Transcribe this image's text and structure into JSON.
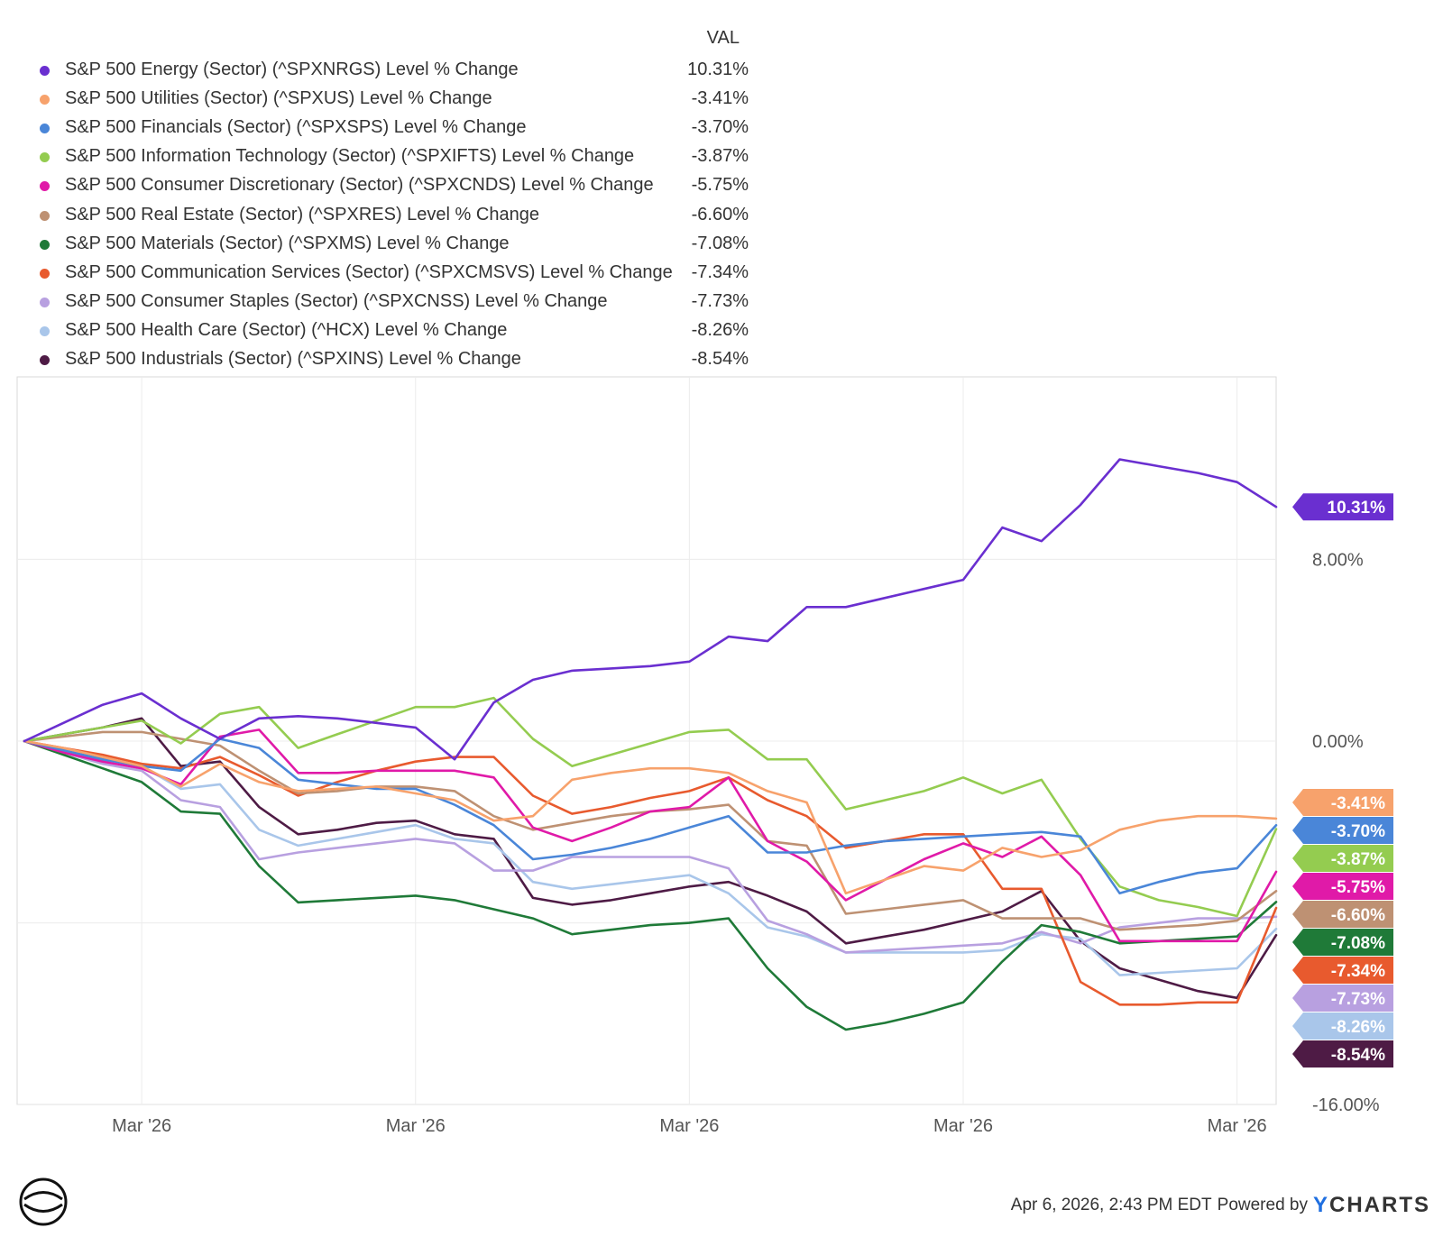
{
  "legend": {
    "value_header": "VAL"
  },
  "chart_data": {
    "type": "line",
    "title": "",
    "xlabel": "",
    "ylabel": "",
    "ylim": [
      -16,
      16
    ],
    "y_ticks": [
      8,
      0,
      -16
    ],
    "y_tick_labels": [
      "8.00%",
      "0.00%",
      "-16.00%"
    ],
    "x_tick_labels": [
      "Mar '26",
      "Mar '26",
      "Mar '26",
      "Mar '26",
      "Mar '26"
    ],
    "x_tick_index": [
      3,
      10,
      17,
      24,
      31
    ],
    "x_count": 33,
    "series": [
      {
        "name": "S&P 500 Energy (Sector) (^SPXNRGS) Level % Change",
        "value_label": "10.31%",
        "color": "#6a2fd0",
        "values": [
          0,
          0.8,
          1.6,
          2.1,
          1.0,
          0.1,
          1.0,
          1.1,
          1.0,
          0.8,
          0.6,
          -0.8,
          1.7,
          2.7,
          3.1,
          3.2,
          3.3,
          3.5,
          4.6,
          4.4,
          5.9,
          5.9,
          6.3,
          6.7,
          7.1,
          9.4,
          8.8,
          10.4,
          12.4,
          12.1,
          11.8,
          11.4,
          10.31
        ]
      },
      {
        "name": "S&P 500 Utilities (Sector) (^SPXUS) Level % Change",
        "value_label": "-3.41%",
        "color": "#f7a26c",
        "values": [
          0,
          -0.3,
          -0.7,
          -1.1,
          -2.0,
          -1.0,
          -1.8,
          -2.2,
          -2.1,
          -2.0,
          -2.3,
          -2.6,
          -3.5,
          -3.3,
          -1.7,
          -1.4,
          -1.2,
          -1.2,
          -1.4,
          -2.2,
          -2.7,
          -6.7,
          -6.1,
          -5.5,
          -5.7,
          -4.7,
          -5.1,
          -4.8,
          -3.9,
          -3.5,
          -3.3,
          -3.3,
          -3.41
        ]
      },
      {
        "name": "S&P 500 Financials (Sector) (^SPXSPS) Level % Change",
        "value_label": "-3.70%",
        "color": "#4a86d8",
        "values": [
          0,
          -0.4,
          -0.8,
          -1.1,
          -1.3,
          0.1,
          -0.3,
          -1.7,
          -1.9,
          -2.1,
          -2.1,
          -2.8,
          -3.7,
          -5.2,
          -5.0,
          -4.7,
          -4.3,
          -3.8,
          -3.3,
          -4.9,
          -4.9,
          -4.6,
          -4.4,
          -4.3,
          -4.2,
          -4.1,
          -4.0,
          -4.2,
          -6.7,
          -6.2,
          -5.8,
          -5.6,
          -3.7
        ]
      },
      {
        "name": "S&P 500 Information Technology (Sector) (^SPXIFTS) Level % Change",
        "value_label": "-3.87%",
        "color": "#94cc50",
        "values": [
          0,
          0.3,
          0.6,
          0.9,
          -0.1,
          1.2,
          1.5,
          -0.3,
          0.3,
          0.9,
          1.5,
          1.5,
          1.9,
          0.1,
          -1.1,
          -0.6,
          -0.1,
          0.4,
          0.5,
          -0.8,
          -0.8,
          -3.0,
          -2.6,
          -2.2,
          -1.6,
          -2.3,
          -1.7,
          -4.3,
          -6.4,
          -7.0,
          -7.3,
          -7.7,
          -3.87
        ]
      },
      {
        "name": "S&P 500 Consumer Discretionary (Sector) (^SPXCNDS) Level % Change",
        "value_label": "-5.75%",
        "color": "#e01aa8",
        "values": [
          0,
          -0.5,
          -0.9,
          -1.2,
          -1.9,
          0.2,
          0.5,
          -1.4,
          -1.4,
          -1.3,
          -1.3,
          -1.3,
          -1.6,
          -3.8,
          -4.4,
          -3.8,
          -3.1,
          -2.9,
          -1.6,
          -4.4,
          -5.3,
          -7.0,
          -6.1,
          -5.2,
          -4.5,
          -5.1,
          -4.2,
          -5.9,
          -8.8,
          -8.8,
          -8.8,
          -8.8,
          -5.75
        ]
      },
      {
        "name": "S&P 500 Real Estate (Sector) (^SPXRES) Level % Change",
        "value_label": "-6.60%",
        "color": "#be9173",
        "values": [
          0,
          0.2,
          0.4,
          0.4,
          0.1,
          -0.2,
          -1.3,
          -2.3,
          -2.2,
          -2.0,
          -2.0,
          -2.2,
          -3.3,
          -3.9,
          -3.6,
          -3.3,
          -3.1,
          -3.0,
          -2.8,
          -4.4,
          -4.6,
          -7.6,
          -7.4,
          -7.2,
          -7.0,
          -7.8,
          -7.8,
          -7.8,
          -8.3,
          -8.2,
          -8.1,
          -7.9,
          -6.6
        ]
      },
      {
        "name": "S&P 500 Materials (Sector) (^SPXMS) Level % Change",
        "value_label": "-7.08%",
        "color": "#1f7a38",
        "values": [
          0,
          -0.6,
          -1.2,
          -1.8,
          -3.1,
          -3.2,
          -5.5,
          -7.1,
          -7.0,
          -6.9,
          -6.8,
          -7.0,
          -7.4,
          -7.8,
          -8.5,
          -8.3,
          -8.1,
          -8.0,
          -7.8,
          -10.0,
          -11.7,
          -12.7,
          -12.4,
          -12.0,
          -11.5,
          -9.7,
          -8.1,
          -8.4,
          -8.9,
          -8.8,
          -8.7,
          -8.6,
          -7.08
        ]
      },
      {
        "name": "S&P 500 Communication Services (Sector) (^SPXCMSVS) Level % Change",
        "value_label": "-7.34%",
        "color": "#e85a2e",
        "values": [
          0,
          -0.3,
          -0.6,
          -1.0,
          -1.2,
          -0.7,
          -1.5,
          -2.4,
          -1.8,
          -1.3,
          -0.9,
          -0.7,
          -0.7,
          -2.4,
          -3.2,
          -2.9,
          -2.5,
          -2.2,
          -1.6,
          -2.6,
          -3.3,
          -4.7,
          -4.4,
          -4.1,
          -4.1,
          -6.5,
          -6.5,
          -10.6,
          -11.6,
          -11.6,
          -11.5,
          -11.5,
          -7.34
        ]
      },
      {
        "name": "S&P 500 Consumer Staples (Sector) (^SPXCNSS) Level % Change",
        "value_label": "-7.73%",
        "color": "#b8a0e0",
        "values": [
          0,
          -0.5,
          -1.0,
          -1.3,
          -2.6,
          -2.9,
          -5.2,
          -4.9,
          -4.7,
          -4.5,
          -4.3,
          -4.5,
          -5.7,
          -5.7,
          -5.1,
          -5.1,
          -5.1,
          -5.1,
          -5.6,
          -7.9,
          -8.5,
          -9.3,
          -9.2,
          -9.1,
          -9.0,
          -8.9,
          -8.4,
          -8.9,
          -8.2,
          -8.0,
          -7.8,
          -7.8,
          -7.73
        ]
      },
      {
        "name": "S&P 500 Health Care (Sector) (^HCX) Level % Change",
        "value_label": "-8.26%",
        "color": "#a9c6ea",
        "values": [
          0,
          -0.4,
          -0.8,
          -1.1,
          -2.1,
          -1.9,
          -3.9,
          -4.6,
          -4.3,
          -4.0,
          -3.7,
          -4.3,
          -4.5,
          -6.2,
          -6.5,
          -6.3,
          -6.1,
          -5.9,
          -6.7,
          -8.2,
          -8.6,
          -9.3,
          -9.3,
          -9.3,
          -9.3,
          -9.2,
          -8.5,
          -8.7,
          -10.3,
          -10.2,
          -10.1,
          -10.0,
          -8.26
        ]
      },
      {
        "name": "S&P 500 Industrials (Sector) (^SPXINS) Level % Change",
        "value_label": "-8.54%",
        "color": "#4e1b45",
        "values": [
          0,
          0.3,
          0.6,
          1.0,
          -1.1,
          -0.9,
          -2.9,
          -4.1,
          -3.9,
          -3.6,
          -3.5,
          -4.1,
          -4.3,
          -6.9,
          -7.2,
          -7.0,
          -6.7,
          -6.4,
          -6.2,
          -6.8,
          -7.5,
          -8.9,
          -8.6,
          -8.3,
          -7.9,
          -7.5,
          -6.6,
          -8.8,
          -10.0,
          -10.5,
          -11.0,
          -11.3,
          -8.54
        ]
      }
    ]
  },
  "footer": {
    "timestamp": "Apr 6, 2026, 2:43 PM EDT",
    "powered_by": "Powered by",
    "brand_y": "Y",
    "brand_rest": "CHARTS"
  }
}
